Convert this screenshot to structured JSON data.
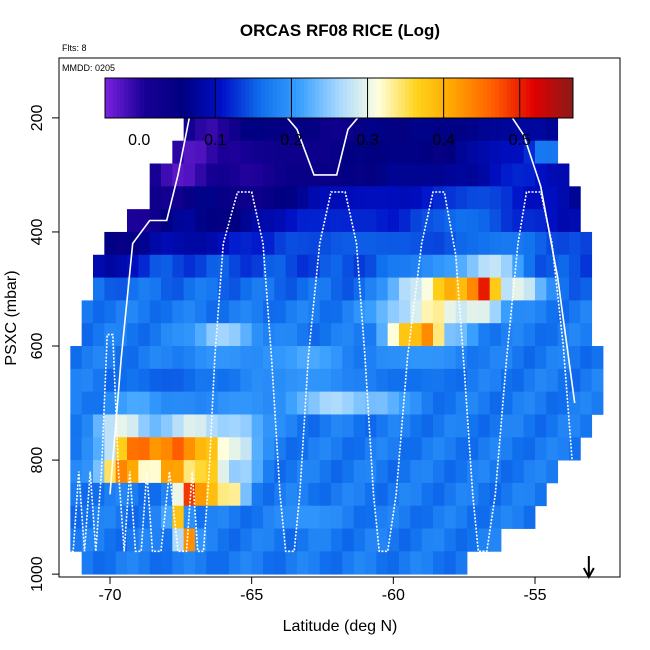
{
  "chart_data": {
    "type": "heatmap",
    "title": "ORCAS RF08 RICE (Log)",
    "subtitle": "Flts: 8",
    "annotation": "MMDD: 0205",
    "xlabel": "Latitude (deg N)",
    "ylabel": "PSXC (mbar)",
    "xlim": [
      -71.8,
      -52.0
    ],
    "ylim": [
      1005,
      95
    ],
    "y_reversed": true,
    "x_ticks": [
      -70,
      -65,
      -60,
      -55
    ],
    "x_tick_labels": [
      "-70",
      "-65",
      "-60",
      "-55"
    ],
    "y_ticks": [
      200,
      400,
      600,
      800,
      1000
    ],
    "y_tick_labels": [
      "200",
      "400",
      "600",
      "800",
      "1000"
    ],
    "colorbar": {
      "range": [
        -0.045,
        0.57
      ],
      "ticks": [
        0.0,
        0.1,
        0.2,
        0.3,
        0.4,
        0.5
      ],
      "tick_labels": [
        "0.0",
        "0.1",
        "0.2",
        "0.3",
        "0.4",
        "0.5"
      ],
      "colors": [
        "#7a22e0",
        "#1a0096",
        "#000080",
        "#0010c8",
        "#1070ee",
        "#3aa0ff",
        "#a8d8ff",
        "#ffffe0",
        "#ffd21a",
        "#ffa000",
        "#ff5a00",
        "#e00000",
        "#8a1a1a"
      ],
      "placement": "top"
    },
    "band_height_mbar": 40,
    "cell_width_deg": 0.4,
    "bands": [
      {
        "p": 180,
        "x0": -67.4,
        "x1": -54.6,
        "peaks": [
          [
            -67.0,
            0.08,
            0.5
          ],
          [
            -66.0,
            0.1,
            1.2
          ],
          [
            -64.5,
            0.04,
            1.0
          ],
          [
            -61.5,
            0.06,
            2.0
          ],
          [
            -59.5,
            0.03,
            1.5
          ],
          [
            -57.0,
            0.06,
            1.5
          ]
        ],
        "base": 0.05
      },
      {
        "p": 220,
        "x0": -67.4,
        "x1": -54.2,
        "peaks": [
          [
            -66.5,
            -0.01,
            1.0
          ],
          [
            -64.0,
            0.05,
            1.0
          ],
          [
            -62.0,
            0.03,
            1.0
          ],
          [
            -58.0,
            0.06,
            1.5
          ],
          [
            -55.5,
            0.08,
            1.2
          ]
        ],
        "base": 0.06
      },
      {
        "p": 260,
        "x0": -67.8,
        "x1": -54.2,
        "peaks": [
          [
            -67.0,
            -0.03,
            1.0
          ],
          [
            -65.5,
            0.0,
            1.0
          ],
          [
            -63.5,
            0.03,
            1.5
          ],
          [
            -60.0,
            0.06,
            1.5
          ],
          [
            -56.0,
            0.1,
            1.5
          ],
          [
            -54.6,
            0.18,
            0.6
          ]
        ],
        "base": 0.05
      },
      {
        "p": 300,
        "x0": -68.6,
        "x1": -53.8,
        "peaks": [
          [
            -67.5,
            -0.03,
            1.2
          ],
          [
            -65.0,
            0.0,
            1.5
          ],
          [
            -62.5,
            0.04,
            1.5
          ],
          [
            -59.0,
            0.07,
            1.5
          ],
          [
            -55.5,
            0.12,
            1.5
          ]
        ],
        "base": 0.06
      },
      {
        "p": 340,
        "x0": -68.6,
        "x1": -53.4,
        "peaks": [
          [
            -68.0,
            0.02,
            1.0
          ],
          [
            -65.0,
            0.03,
            1.5
          ],
          [
            -61.0,
            0.1,
            2.0
          ],
          [
            -57.0,
            0.14,
            2.0
          ]
        ],
        "base": 0.08
      },
      {
        "p": 380,
        "x0": -69.4,
        "x1": -53.4,
        "peaks": [
          [
            -69.0,
            0.0,
            1.0
          ],
          [
            -66.0,
            0.05,
            1.5
          ],
          [
            -62.0,
            0.12,
            2.0
          ],
          [
            -57.5,
            0.16,
            2.0
          ]
        ],
        "base": 0.1
      },
      {
        "p": 420,
        "x0": -70.2,
        "x1": -53.0,
        "peaks": [
          [
            -69.5,
            0.04,
            1.0
          ],
          [
            -67.0,
            0.08,
            1.5
          ],
          [
            -61.0,
            0.15,
            3.0
          ],
          [
            -56.0,
            0.17,
            2.0
          ]
        ],
        "base": 0.12
      },
      {
        "p": 460,
        "x0": -70.6,
        "x1": -53.0,
        "peaks": [
          [
            -70.0,
            0.08,
            1.0
          ],
          [
            -58.0,
            0.2,
            2.0
          ],
          [
            -56.5,
            0.28,
            1.0
          ]
        ],
        "base": 0.14
      },
      {
        "p": 500,
        "x0": -70.6,
        "x1": -53.0,
        "peaks": [
          [
            -59.5,
            0.26,
            0.8
          ],
          [
            -58.0,
            0.4,
            1.0
          ],
          [
            -56.8,
            0.52,
            0.6
          ],
          [
            -55.5,
            0.3,
            0.8
          ]
        ],
        "base": 0.16
      },
      {
        "p": 540,
        "x0": -71.0,
        "x1": -53.0,
        "peaks": [
          [
            -60.0,
            0.24,
            1.0
          ],
          [
            -58.5,
            0.34,
            1.0
          ],
          [
            -57.0,
            0.3,
            1.0
          ]
        ],
        "base": 0.17
      },
      {
        "p": 580,
        "x0": -71.0,
        "x1": -53.0,
        "peaks": [
          [
            -66.0,
            0.26,
            1.2
          ],
          [
            -59.5,
            0.38,
            0.8
          ],
          [
            -58.6,
            0.52,
            0.5
          ],
          [
            -57.8,
            0.24,
            0.8
          ]
        ],
        "base": 0.17
      },
      {
        "p": 620,
        "x0": -71.4,
        "x1": -52.6,
        "peaks": [
          [
            -66.0,
            0.2,
            1.5
          ],
          [
            -63.0,
            0.22,
            1.2
          ],
          [
            -59.0,
            0.2,
            1.5
          ]
        ],
        "base": 0.17
      },
      {
        "p": 660,
        "x0": -71.4,
        "x1": -52.6,
        "peaks": [
          [
            -68.0,
            0.15,
            1.5
          ],
          [
            -63.0,
            0.2,
            2.0
          ],
          [
            -59.5,
            0.16,
            1.5
          ]
        ],
        "base": 0.17
      },
      {
        "p": 700,
        "x0": -71.4,
        "x1": -52.6,
        "peaks": [
          [
            -69.0,
            0.22,
            1.0
          ],
          [
            -65.5,
            0.2,
            1.5
          ],
          [
            -62.0,
            0.27,
            1.5
          ],
          [
            -60.5,
            0.24,
            1.0
          ]
        ],
        "base": 0.17
      },
      {
        "p": 740,
        "x0": -71.4,
        "x1": -53.0,
        "peaks": [
          [
            -69.5,
            0.3,
            1.0
          ],
          [
            -67.0,
            0.3,
            1.2
          ],
          [
            -65.5,
            0.26,
            1.0
          ]
        ],
        "base": 0.17
      },
      {
        "p": 780,
        "x0": -71.4,
        "x1": -53.4,
        "peaks": [
          [
            -69.0,
            0.46,
            1.0
          ],
          [
            -67.5,
            0.48,
            1.0
          ],
          [
            -66.5,
            0.4,
            0.8
          ],
          [
            -65.5,
            0.3,
            0.7
          ]
        ],
        "base": 0.17
      },
      {
        "p": 820,
        "x0": -71.4,
        "x1": -54.2,
        "peaks": [
          [
            -69.5,
            0.44,
            0.8
          ],
          [
            -67.8,
            0.44,
            0.7
          ],
          [
            -66.5,
            0.38,
            0.8
          ],
          [
            -65.3,
            0.26,
            0.6
          ]
        ],
        "base": 0.17
      },
      {
        "p": 860,
        "x0": -71.4,
        "x1": -54.6,
        "peaks": [
          [
            -67.2,
            0.5,
            0.4
          ],
          [
            -66.6,
            0.45,
            0.5
          ],
          [
            -65.8,
            0.35,
            0.6
          ]
        ],
        "base": 0.17
      },
      {
        "p": 900,
        "x0": -71.4,
        "x1": -55.0,
        "peaks": [
          [
            -67.6,
            0.38,
            0.3
          ],
          [
            -63.0,
            0.2,
            1.0
          ]
        ],
        "base": 0.17
      },
      {
        "p": 940,
        "x0": -71.4,
        "x1": -56.2,
        "peaks": [
          [
            -67.3,
            0.46,
            0.3
          ]
        ],
        "base": 0.17
      },
      {
        "p": 980,
        "x0": -71.0,
        "x1": -57.4,
        "peaks": [],
        "base": 0.17
      }
    ],
    "flight_track": [
      [
        -71.6,
        820
      ],
      [
        -71.5,
        960
      ],
      [
        -71.3,
        960
      ],
      [
        -71.1,
        820
      ],
      [
        -70.9,
        960
      ],
      [
        -70.7,
        820
      ],
      [
        -70.5,
        960
      ],
      [
        -70.3,
        820
      ],
      [
        -70.1,
        580
      ],
      [
        -69.9,
        580
      ],
      [
        -69.7,
        820
      ],
      [
        -69.5,
        960
      ],
      [
        -69.3,
        820
      ],
      [
        -69.1,
        960
      ],
      [
        -68.9,
        960
      ],
      [
        -68.7,
        820
      ],
      [
        -68.5,
        960
      ],
      [
        -68.2,
        960
      ],
      [
        -67.9,
        820
      ],
      [
        -67.6,
        960
      ],
      [
        -67.3,
        960
      ],
      [
        -67.1,
        820
      ],
      [
        -66.9,
        960
      ],
      [
        -66.7,
        960
      ],
      [
        -66.5,
        820
      ],
      [
        -66.3,
        620
      ],
      [
        -66.0,
        420
      ],
      [
        -65.5,
        330
      ],
      [
        -65.0,
        330
      ],
      [
        -64.6,
        420
      ],
      [
        -64.3,
        620
      ],
      [
        -64.0,
        860
      ],
      [
        -63.8,
        960
      ],
      [
        -63.5,
        960
      ],
      [
        -63.3,
        860
      ],
      [
        -63.0,
        620
      ],
      [
        -62.6,
        420
      ],
      [
        -62.2,
        330
      ],
      [
        -61.7,
        330
      ],
      [
        -61.3,
        420
      ],
      [
        -61.0,
        620
      ],
      [
        -60.7,
        860
      ],
      [
        -60.5,
        960
      ],
      [
        -60.2,
        960
      ],
      [
        -59.9,
        860
      ],
      [
        -59.5,
        620
      ],
      [
        -59.0,
        420
      ],
      [
        -58.6,
        330
      ],
      [
        -58.2,
        330
      ],
      [
        -57.8,
        440
      ],
      [
        -57.5,
        640
      ],
      [
        -57.2,
        860
      ],
      [
        -57.0,
        960
      ],
      [
        -56.7,
        960
      ],
      [
        -56.4,
        860
      ],
      [
        -56.0,
        620
      ],
      [
        -55.6,
        420
      ],
      [
        -55.3,
        330
      ],
      [
        -54.8,
        330
      ],
      [
        -54.4,
        420
      ],
      [
        -54.0,
        600
      ],
      [
        -53.6,
        860
      ]
    ],
    "flight_track_2": [
      [
        -70.0,
        860
      ],
      [
        -69.6,
        620
      ],
      [
        -69.2,
        420
      ],
      [
        -68.6,
        380
      ],
      [
        -68.0,
        380
      ],
      [
        -67.6,
        300
      ],
      [
        -67.2,
        200
      ],
      [
        -66.8,
        185
      ],
      [
        -66.0,
        185
      ],
      [
        -64.8,
        185
      ],
      [
        -64.0,
        185
      ],
      [
        -63.4,
        220
      ],
      [
        -62.8,
        300
      ],
      [
        -62.0,
        300
      ],
      [
        -61.6,
        220
      ],
      [
        -61.0,
        185
      ],
      [
        -60.0,
        185
      ],
      [
        -58.0,
        185
      ],
      [
        -57.0,
        185
      ],
      [
        -56.0,
        185
      ],
      [
        -55.4,
        230
      ],
      [
        -54.8,
        320
      ],
      [
        -54.2,
        480
      ],
      [
        -53.6,
        700
      ]
    ],
    "marker": {
      "x": -53.1,
      "label": "arrow",
      "shape": "down-arrow"
    }
  },
  "palette": {
    "axis": "#000000",
    "track": "#ffffff"
  }
}
